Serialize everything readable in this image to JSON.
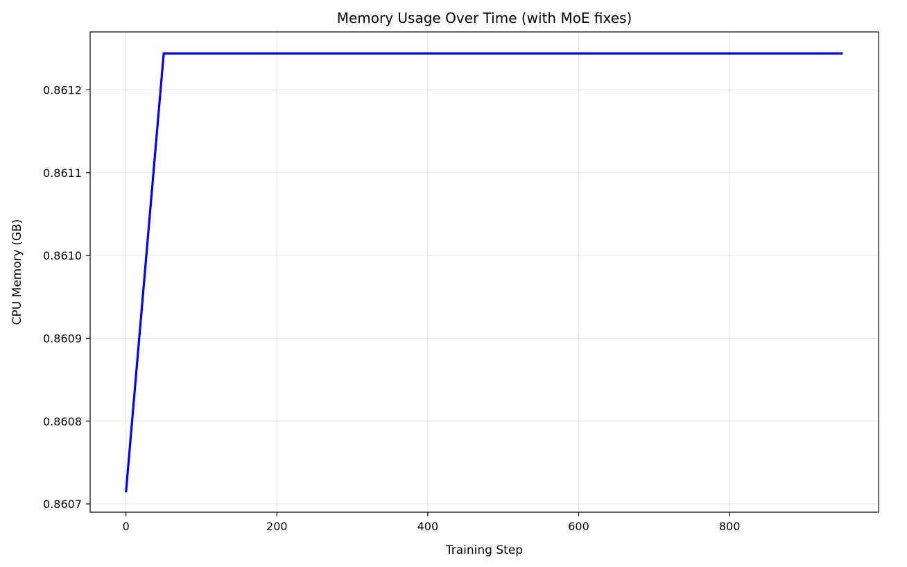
{
  "chart_data": {
    "type": "line",
    "title": "Memory Usage Over Time (with MoE fixes)",
    "xlabel": "Training Step",
    "ylabel": "CPU Memory (GB)",
    "xlim": [
      -47.5,
      997.5
    ],
    "ylim": [
      0.86069,
      0.86127
    ],
    "x_ticks": [
      0,
      200,
      400,
      600,
      800
    ],
    "x_tick_labels": [
      "0",
      "200",
      "400",
      "600",
      "800"
    ],
    "y_ticks": [
      0.8607,
      0.8608,
      0.8609,
      0.861,
      0.8611,
      0.8612
    ],
    "y_tick_labels": [
      "0.8607",
      "0.8608",
      "0.8609",
      "0.8610",
      "0.8611",
      "0.8612"
    ],
    "grid": true,
    "series": [
      {
        "color": "#0000ff",
        "x": [
          0,
          50,
          100,
          150,
          200,
          250,
          300,
          350,
          400,
          450,
          500,
          550,
          600,
          650,
          700,
          750,
          800,
          850,
          900,
          950
        ],
        "y": [
          0.860714,
          0.861244,
          0.861244,
          0.861244,
          0.861244,
          0.861244,
          0.861244,
          0.861244,
          0.861244,
          0.861244,
          0.861244,
          0.861244,
          0.861244,
          0.861244,
          0.861244,
          0.861244,
          0.861244,
          0.861244,
          0.861244,
          0.861244
        ]
      }
    ]
  }
}
